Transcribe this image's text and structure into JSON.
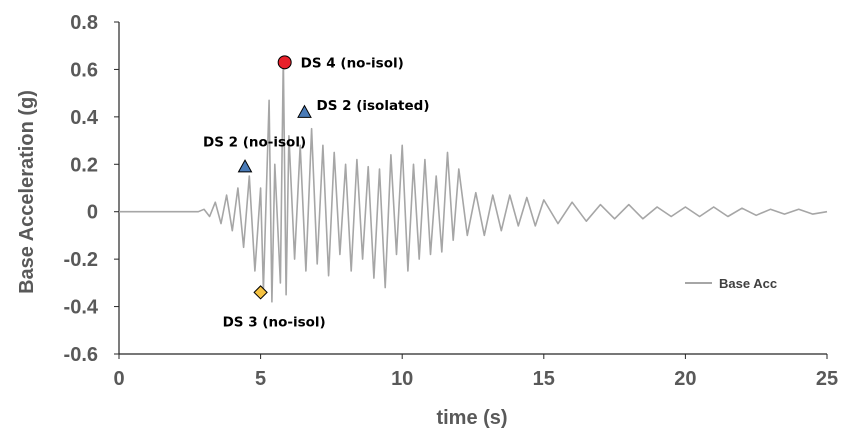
{
  "chart_data": {
    "type": "line",
    "title": "",
    "xlabel": "time (s)",
    "ylabel": "Base Acceleration (g)",
    "xlim": [
      0,
      25
    ],
    "ylim": [
      -0.6,
      0.8
    ],
    "x_ticks": [
      "0",
      "5",
      "10",
      "15",
      "20",
      "25"
    ],
    "y_ticks": [
      "-0.6",
      "-0.4",
      "-0.2",
      "0",
      "0.2",
      "0.4",
      "0.6",
      "0.8"
    ],
    "grid": false,
    "legend_position": "right",
    "series": [
      {
        "name": "Base Acc",
        "color": "#a6a6a6",
        "x": [
          0,
          2.8,
          3.0,
          3.2,
          3.4,
          3.6,
          3.8,
          4.0,
          4.2,
          4.4,
          4.6,
          4.8,
          5.0,
          5.1,
          5.3,
          5.4,
          5.5,
          5.7,
          5.8,
          5.9,
          6.0,
          6.2,
          6.4,
          6.6,
          6.8,
          7.0,
          7.2,
          7.4,
          7.6,
          7.8,
          8.0,
          8.2,
          8.4,
          8.6,
          8.8,
          9.0,
          9.2,
          9.4,
          9.6,
          9.8,
          10.0,
          10.2,
          10.4,
          10.6,
          10.8,
          11.0,
          11.2,
          11.4,
          11.6,
          11.8,
          12.0,
          12.3,
          12.6,
          12.9,
          13.2,
          13.5,
          13.8,
          14.1,
          14.4,
          14.7,
          15.0,
          15.5,
          16.0,
          16.5,
          17.0,
          17.5,
          18.0,
          18.5,
          19.0,
          19.5,
          20.0,
          20.5,
          21.0,
          21.5,
          22.0,
          22.5,
          23.0,
          23.5,
          24.0,
          24.5,
          25.0
        ],
        "values": [
          0,
          0,
          0.01,
          -0.02,
          0.04,
          -0.05,
          0.07,
          -0.08,
          0.1,
          -0.15,
          0.15,
          -0.25,
          0.1,
          -0.33,
          0.47,
          -0.38,
          0.2,
          -0.3,
          0.65,
          -0.35,
          0.32,
          -0.2,
          0.28,
          -0.25,
          0.35,
          -0.22,
          0.28,
          -0.27,
          0.25,
          -0.18,
          0.2,
          -0.25,
          0.22,
          -0.2,
          0.19,
          -0.28,
          0.18,
          -0.32,
          0.24,
          -0.18,
          0.28,
          -0.25,
          0.2,
          -0.2,
          0.22,
          -0.18,
          0.15,
          -0.17,
          0.25,
          -0.12,
          0.18,
          -0.1,
          0.08,
          -0.1,
          0.07,
          -0.08,
          0.07,
          -0.06,
          0.06,
          -0.06,
          0.05,
          -0.05,
          0.04,
          -0.04,
          0.03,
          -0.03,
          0.03,
          -0.03,
          0.02,
          -0.02,
          0.02,
          -0.02,
          0.02,
          -0.02,
          0.015,
          -0.015,
          0.01,
          -0.01,
          0.01,
          -0.01,
          0
        ]
      }
    ],
    "annotations": [
      {
        "text": "DS 4 (no-isol)",
        "x": 5.85,
        "y": 0.63,
        "marker": "circle",
        "color": "#e8202a"
      },
      {
        "text": "DS 2 (isolated)",
        "x": 6.55,
        "y": 0.42,
        "marker": "triangle",
        "color": "#4a7bb7"
      },
      {
        "text": "DS 2 (no-isol)",
        "x": 4.45,
        "y": 0.19,
        "marker": "triangle",
        "color": "#4a7bb7"
      },
      {
        "text": "DS 3 (no-isol)",
        "x": 5.0,
        "y": -0.34,
        "marker": "diamond",
        "color": "#f5c242"
      }
    ]
  }
}
